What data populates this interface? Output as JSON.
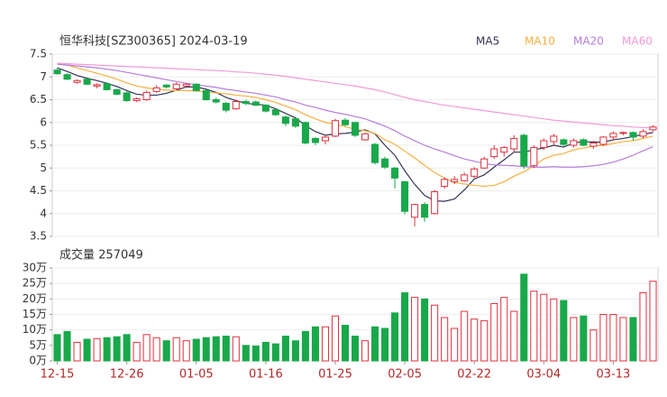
{
  "chart_data": [
    {
      "type": "candlestick",
      "title": "恒华科技[SZ300365] 2024-03-19",
      "open": [
        7.15,
        7.05,
        6.88,
        6.95,
        6.8,
        6.85,
        6.72,
        6.65,
        6.48,
        6.5,
        6.68,
        6.82,
        6.74,
        6.8,
        6.84,
        6.7,
        6.5,
        6.42,
        6.3,
        6.46,
        6.45,
        6.38,
        6.28,
        6.12,
        6.08,
        6.0,
        5.65,
        5.6,
        5.7,
        6.05,
        6.0,
        5.62,
        5.52,
        5.2,
        5.0,
        4.7,
        3.92,
        4.2,
        4.0,
        4.6,
        4.7,
        4.72,
        4.82,
        5.0,
        5.25,
        5.35,
        5.42,
        5.72,
        5.05,
        5.45,
        5.58,
        5.62,
        5.5,
        5.62,
        5.48,
        5.52,
        5.68,
        5.76,
        5.78,
        5.7,
        5.84
      ],
      "high": [
        7.18,
        7.08,
        6.95,
        6.97,
        6.86,
        6.88,
        6.74,
        6.68,
        6.55,
        6.7,
        6.82,
        6.85,
        6.88,
        6.87,
        6.86,
        6.72,
        6.55,
        6.45,
        6.5,
        6.5,
        6.48,
        6.4,
        6.3,
        6.15,
        6.1,
        6.02,
        5.68,
        5.72,
        6.08,
        6.1,
        6.02,
        5.78,
        5.55,
        5.25,
        5.02,
        4.72,
        4.22,
        4.25,
        4.52,
        4.8,
        4.82,
        4.9,
        5.02,
        5.25,
        5.5,
        5.48,
        5.72,
        5.75,
        5.5,
        5.65,
        5.75,
        5.65,
        5.65,
        5.65,
        5.6,
        5.7,
        5.8,
        5.8,
        5.8,
        5.85,
        5.94
      ],
      "low": [
        7.05,
        6.93,
        6.85,
        6.82,
        6.75,
        6.7,
        6.6,
        6.45,
        6.45,
        6.48,
        6.65,
        6.75,
        6.72,
        6.78,
        6.68,
        6.48,
        6.42,
        6.22,
        6.28,
        6.38,
        6.36,
        6.22,
        6.15,
        5.92,
        5.88,
        5.52,
        5.5,
        5.52,
        5.68,
        5.92,
        5.68,
        5.6,
        5.08,
        4.98,
        4.55,
        3.98,
        3.72,
        3.82,
        3.98,
        4.55,
        4.65,
        4.7,
        4.78,
        4.98,
        5.2,
        5.25,
        5.35,
        4.98,
        5.0,
        5.4,
        5.5,
        5.48,
        5.45,
        5.48,
        5.42,
        5.48,
        5.62,
        5.72,
        5.6,
        5.65,
        5.8
      ],
      "close": [
        7.07,
        6.95,
        6.92,
        6.84,
        6.83,
        6.72,
        6.62,
        6.48,
        6.52,
        6.66,
        6.76,
        6.78,
        6.84,
        6.84,
        6.7,
        6.5,
        6.45,
        6.27,
        6.46,
        6.42,
        6.38,
        6.25,
        6.17,
        5.98,
        5.92,
        5.55,
        5.56,
        5.68,
        6.04,
        5.95,
        5.72,
        5.75,
        5.12,
        5.02,
        4.78,
        4.05,
        4.2,
        3.92,
        4.48,
        4.75,
        4.75,
        4.85,
        4.98,
        5.2,
        5.42,
        5.45,
        5.65,
        5.05,
        5.45,
        5.6,
        5.7,
        5.52,
        5.6,
        5.5,
        5.55,
        5.68,
        5.76,
        5.78,
        5.68,
        5.8,
        5.9
      ],
      "up_color": "#e0303e",
      "down_color": "#19a84a",
      "series": [
        {
          "name": "MA5",
          "color": "#333355",
          "values": [
            7.2,
            7.12,
            7.03,
            6.97,
            6.92,
            6.86,
            6.79,
            6.7,
            6.62,
            6.6,
            6.6,
            6.64,
            6.71,
            6.78,
            6.78,
            6.73,
            6.66,
            6.55,
            6.48,
            6.42,
            6.4,
            6.38,
            6.3,
            6.2,
            6.1,
            5.93,
            5.8,
            5.72,
            5.75,
            5.76,
            5.79,
            5.84,
            5.75,
            5.5,
            5.28,
            4.94,
            4.64,
            4.4,
            4.28,
            4.27,
            4.32,
            4.52,
            4.76,
            4.85,
            5.02,
            5.18,
            5.35,
            5.35,
            5.4,
            5.44,
            5.5,
            5.46,
            5.55,
            5.58,
            5.57,
            5.57,
            5.62,
            5.65,
            5.69,
            5.74,
            5.78
          ]
        },
        {
          "name": "MA10",
          "color": "#f5b041",
          "values": [
            7.3,
            7.26,
            7.2,
            7.14,
            7.08,
            7.02,
            6.95,
            6.87,
            6.8,
            6.76,
            6.73,
            6.71,
            6.7,
            6.7,
            6.69,
            6.67,
            6.65,
            6.63,
            6.6,
            6.58,
            6.55,
            6.5,
            6.44,
            6.36,
            6.28,
            6.17,
            6.08,
            6.0,
            5.96,
            5.91,
            5.85,
            5.82,
            5.76,
            5.62,
            5.52,
            5.37,
            5.22,
            5.06,
            4.9,
            4.78,
            4.68,
            4.65,
            4.62,
            4.6,
            4.62,
            4.7,
            4.82,
            4.92,
            5.05,
            5.2,
            5.28,
            5.32,
            5.4,
            5.44,
            5.48,
            5.5,
            5.54,
            5.58,
            5.6,
            5.65,
            5.7
          ]
        },
        {
          "name": "MA20",
          "color": "#b57edc",
          "values": [
            7.28,
            7.26,
            7.24,
            7.22,
            7.2,
            7.17,
            7.14,
            7.1,
            7.06,
            7.02,
            6.98,
            6.94,
            6.9,
            6.86,
            6.83,
            6.8,
            6.77,
            6.73,
            6.7,
            6.67,
            6.64,
            6.6,
            6.56,
            6.5,
            6.45,
            6.38,
            6.33,
            6.27,
            6.22,
            6.18,
            6.13,
            6.08,
            6.0,
            5.92,
            5.82,
            5.7,
            5.6,
            5.5,
            5.42,
            5.35,
            5.27,
            5.2,
            5.15,
            5.1,
            5.07,
            5.06,
            5.05,
            5.03,
            5.02,
            5.02,
            5.03,
            5.02,
            5.02,
            5.03,
            5.05,
            5.08,
            5.13,
            5.2,
            5.28,
            5.38,
            5.47
          ]
        },
        {
          "name": "MA60",
          "color": "#f29ad8",
          "values": [
            7.3,
            7.29,
            7.28,
            7.27,
            7.26,
            7.25,
            7.24,
            7.23,
            7.22,
            7.21,
            7.2,
            7.19,
            7.18,
            7.17,
            7.16,
            7.15,
            7.14,
            7.13,
            7.11,
            7.1,
            7.08,
            7.06,
            7.04,
            7.01,
            6.98,
            6.95,
            6.92,
            6.89,
            6.86,
            6.83,
            6.8,
            6.76,
            6.72,
            6.67,
            6.61,
            6.55,
            6.5,
            6.46,
            6.42,
            6.38,
            6.35,
            6.32,
            6.29,
            6.26,
            6.23,
            6.2,
            6.17,
            6.14,
            6.11,
            6.08,
            6.05,
            6.03,
            6.01,
            5.99,
            5.97,
            5.95,
            5.93,
            5.92,
            5.9,
            5.89,
            5.88
          ]
        }
      ],
      "ylim": [
        3.5,
        7.5
      ],
      "yticks": [
        3.5,
        4,
        4.5,
        5,
        5.5,
        6,
        6.5,
        7,
        7.5
      ],
      "grid": true
    },
    {
      "type": "bar",
      "title": "成交量 257049",
      "categories": [
        "12-15",
        null,
        null,
        null,
        null,
        null,
        null,
        "12-26",
        null,
        null,
        null,
        null,
        null,
        null,
        "01-05",
        null,
        null,
        null,
        null,
        null,
        null,
        "01-16",
        null,
        null,
        null,
        null,
        null,
        null,
        "01-25",
        null,
        null,
        null,
        null,
        null,
        null,
        "02-05",
        null,
        null,
        null,
        null,
        null,
        null,
        "02-22",
        null,
        null,
        null,
        null,
        null,
        null,
        "03-04",
        null,
        null,
        null,
        null,
        null,
        null,
        "03-13",
        null,
        null,
        null,
        null
      ],
      "values": [
        8.5,
        9.5,
        6,
        7,
        7.2,
        7.5,
        7.8,
        8.5,
        6,
        8.5,
        7.5,
        6.5,
        7.5,
        6.5,
        7,
        7.5,
        7.8,
        8,
        7.8,
        5,
        4.8,
        6,
        5.5,
        8,
        6.5,
        9.5,
        11,
        11,
        14.5,
        11.5,
        8,
        6.5,
        11,
        10.5,
        15.5,
        22,
        20.5,
        20,
        18,
        14,
        10.5,
        16,
        13.5,
        13,
        18.5,
        20.5,
        16,
        28,
        22.5,
        21.5,
        20,
        19.5,
        14,
        14.5,
        10,
        15,
        15,
        14,
        14,
        22,
        25.7049
      ],
      "ylim": [
        0,
        30
      ],
      "yticks": [
        {
          "value": 0,
          "label": "0万"
        },
        {
          "value": 5,
          "label": "5万"
        },
        {
          "value": 10,
          "label": "10万"
        },
        {
          "value": 15,
          "label": "15万"
        },
        {
          "value": 20,
          "label": "20万"
        },
        {
          "value": 25,
          "label": "25万"
        },
        {
          "value": 30,
          "label": "30万"
        }
      ],
      "grid": true
    }
  ]
}
